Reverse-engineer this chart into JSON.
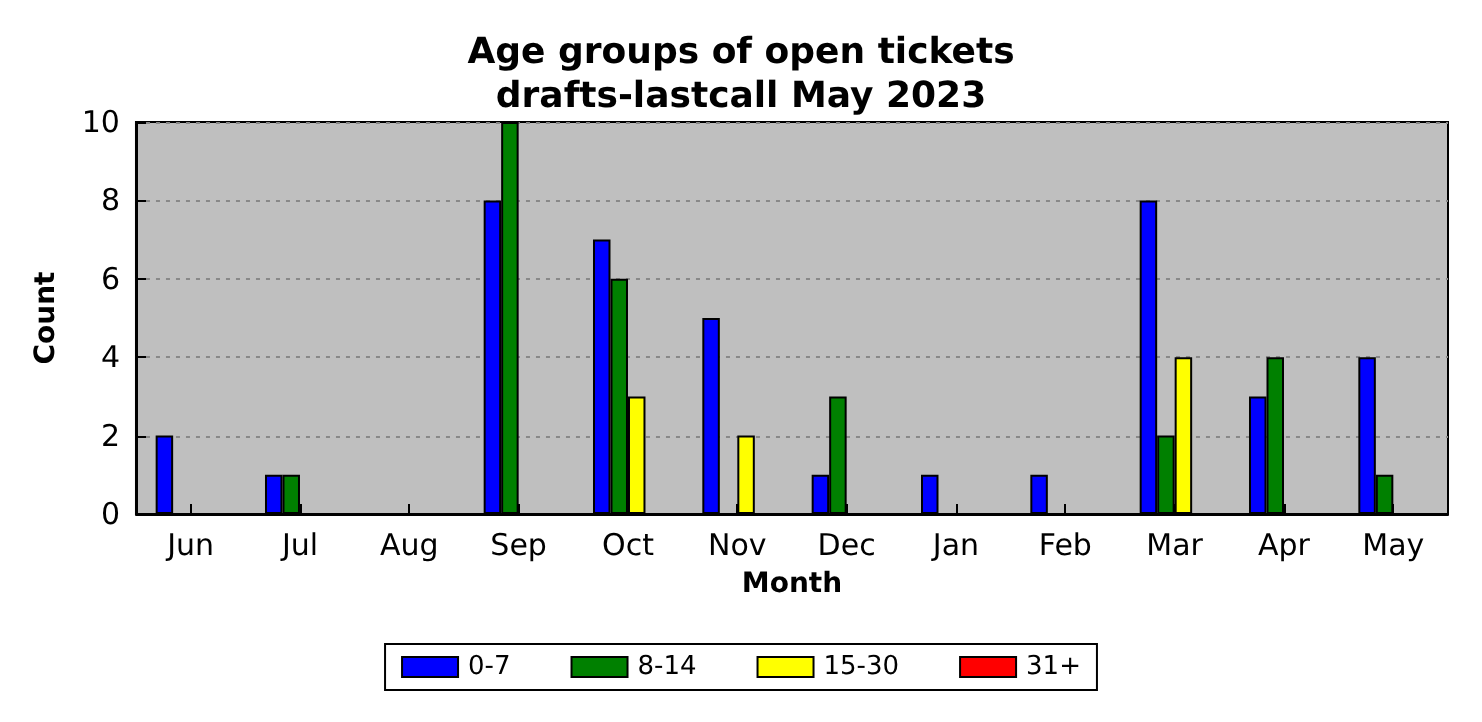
{
  "chart_data": {
    "type": "bar",
    "title": "Age groups of open tickets\ndrafts-lastcall May 2023",
    "xlabel": "Month",
    "ylabel": "Count",
    "categories": [
      "Jun",
      "Jul",
      "Aug",
      "Sep",
      "Oct",
      "Nov",
      "Dec",
      "Jan",
      "Feb",
      "Mar",
      "Apr",
      "May"
    ],
    "series": [
      {
        "name": "0-7",
        "color": "#0000ff",
        "values": [
          2,
          1,
          0,
          8,
          7,
          5,
          1,
          1,
          1,
          8,
          3,
          4
        ]
      },
      {
        "name": "8-14",
        "color": "#008000",
        "values": [
          0,
          1,
          0,
          10,
          6,
          0,
          3,
          0,
          0,
          2,
          4,
          1
        ]
      },
      {
        "name": "15-30",
        "color": "#ffff00",
        "values": [
          0,
          0,
          0,
          0,
          3,
          2,
          0,
          0,
          0,
          4,
          0,
          0
        ]
      },
      {
        "name": "31+",
        "color": "#ff0000",
        "values": [
          0,
          0,
          0,
          0,
          0,
          0,
          0,
          0,
          0,
          0,
          0,
          0
        ]
      }
    ],
    "ylim": [
      0,
      10
    ],
    "yticks": [
      0,
      2,
      4,
      6,
      8,
      10
    ],
    "grid": "y",
    "legend": "bottom"
  }
}
